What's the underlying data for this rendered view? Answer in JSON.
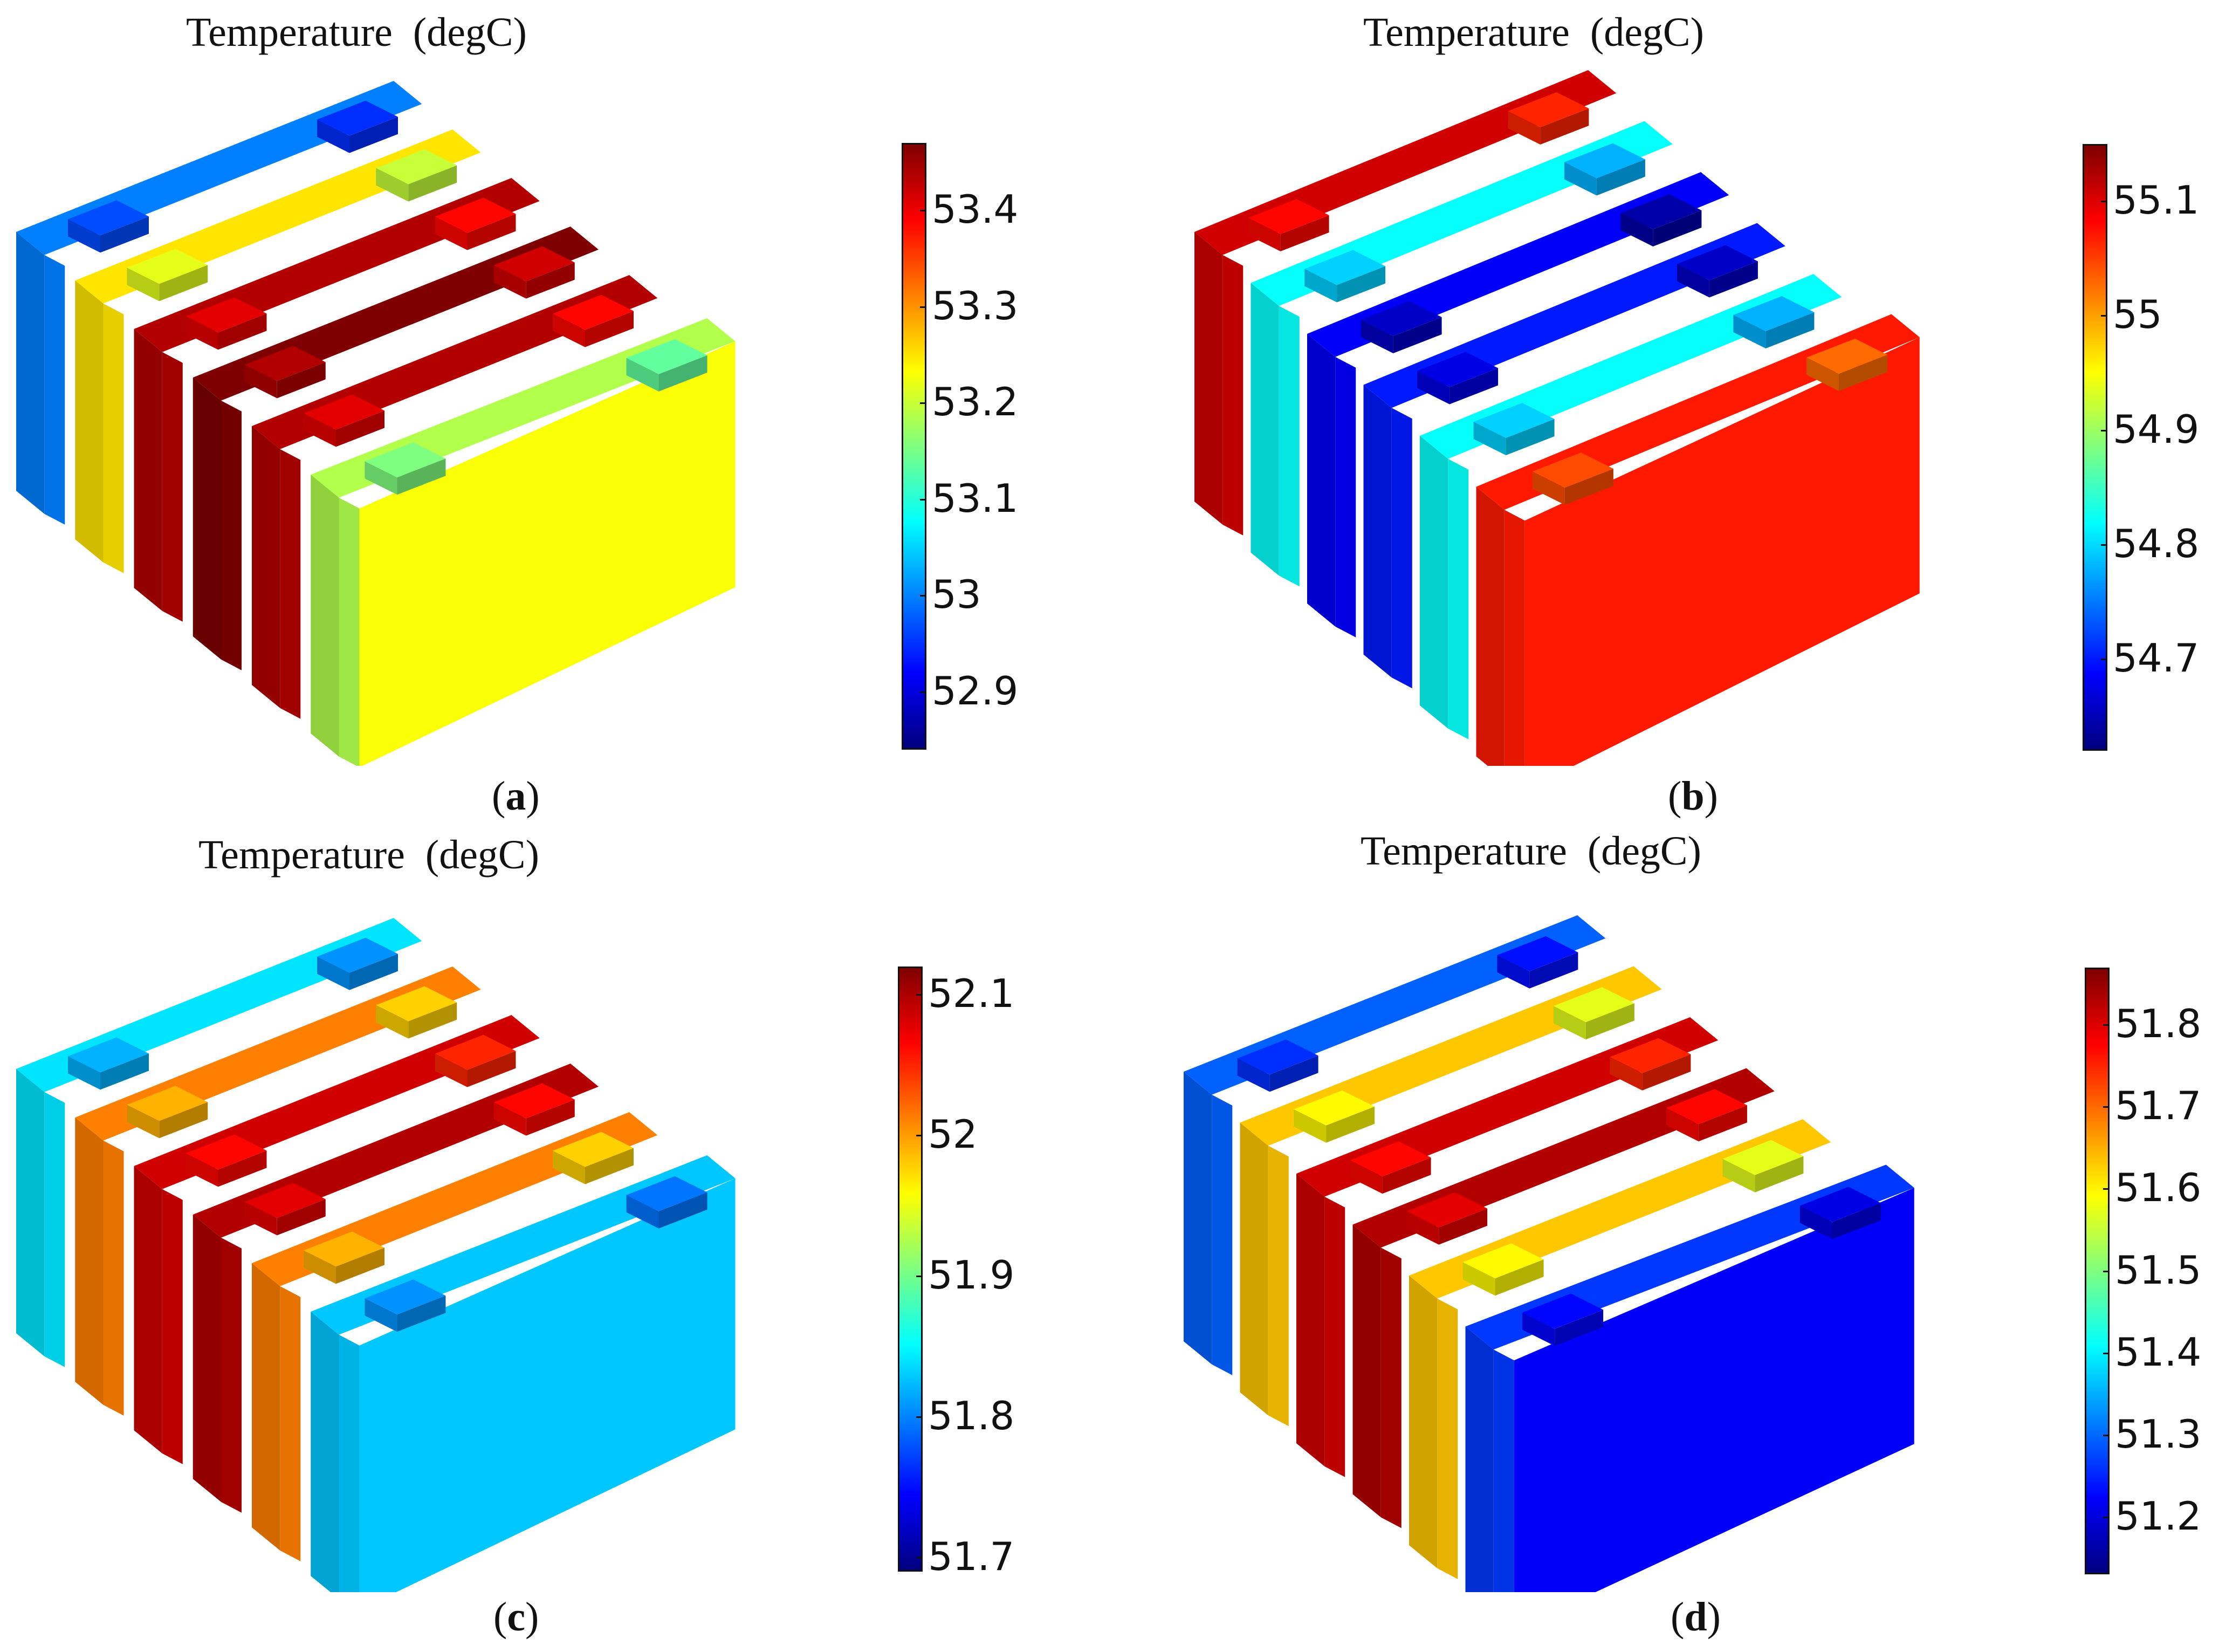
{
  "panels": [
    {
      "id": "a",
      "title": "Temperature  (degC)",
      "label_open": "(",
      "label_letter": "a",
      "label_close": ")",
      "colorbar": {
        "min": 52.84,
        "max": 53.47,
        "ticks": [
          "53.4",
          "53.3",
          "53.2",
          "53.1",
          "53",
          "52.9"
        ],
        "tick_values": [
          53.4,
          53.3,
          53.2,
          53.1,
          53.0,
          52.9
        ]
      },
      "cells": [
        0.25,
        0.65,
        0.95,
        1.0,
        0.95,
        0.55
      ],
      "front_face": 0.62
    },
    {
      "id": "b",
      "title": "Temperature  (degC)",
      "label_open": "(",
      "label_letter": "b",
      "label_close": ")",
      "colorbar": {
        "min": 54.62,
        "max": 55.15,
        "ticks": [
          "55.1",
          "55",
          "54.9",
          "54.8",
          "54.7"
        ],
        "tick_values": [
          55.1,
          55.0,
          54.9,
          54.8,
          54.7
        ]
      },
      "cells": [
        0.92,
        0.38,
        0.12,
        0.15,
        0.38,
        0.85
      ],
      "front_face": 0.85
    },
    {
      "id": "c",
      "title": "Temperature  (degC)",
      "label_open": "(",
      "label_letter": "c",
      "label_close": ")",
      "colorbar": {
        "min": 51.69,
        "max": 52.12,
        "ticks": [
          "52.1",
          "52",
          "51.9",
          "51.8",
          "51.7"
        ],
        "tick_values": [
          52.1,
          52.0,
          51.9,
          51.8,
          51.7
        ]
      },
      "cells": [
        0.35,
        0.75,
        0.92,
        0.95,
        0.75,
        0.32
      ],
      "front_face": 0.32
    },
    {
      "id": "d",
      "title": "Temperature  (degC)",
      "label_open": "(",
      "label_letter": "d",
      "label_close": ")",
      "colorbar": {
        "min": 51.13,
        "max": 51.87,
        "ticks": [
          "51.8",
          "51.7",
          "51.6",
          "51.5",
          "51.4",
          "51.3",
          "51.2"
        ],
        "tick_values": [
          51.8,
          51.7,
          51.6,
          51.5,
          51.4,
          51.3,
          51.2
        ]
      },
      "cells": [
        0.22,
        0.68,
        0.92,
        0.95,
        0.68,
        0.18
      ],
      "front_face": 0.12
    }
  ],
  "colormap": [
    "#00007f",
    "#0000ff",
    "#007fff",
    "#00ffff",
    "#7fff7f",
    "#ffff00",
    "#ff7f00",
    "#ff0000",
    "#7f0000"
  ]
}
